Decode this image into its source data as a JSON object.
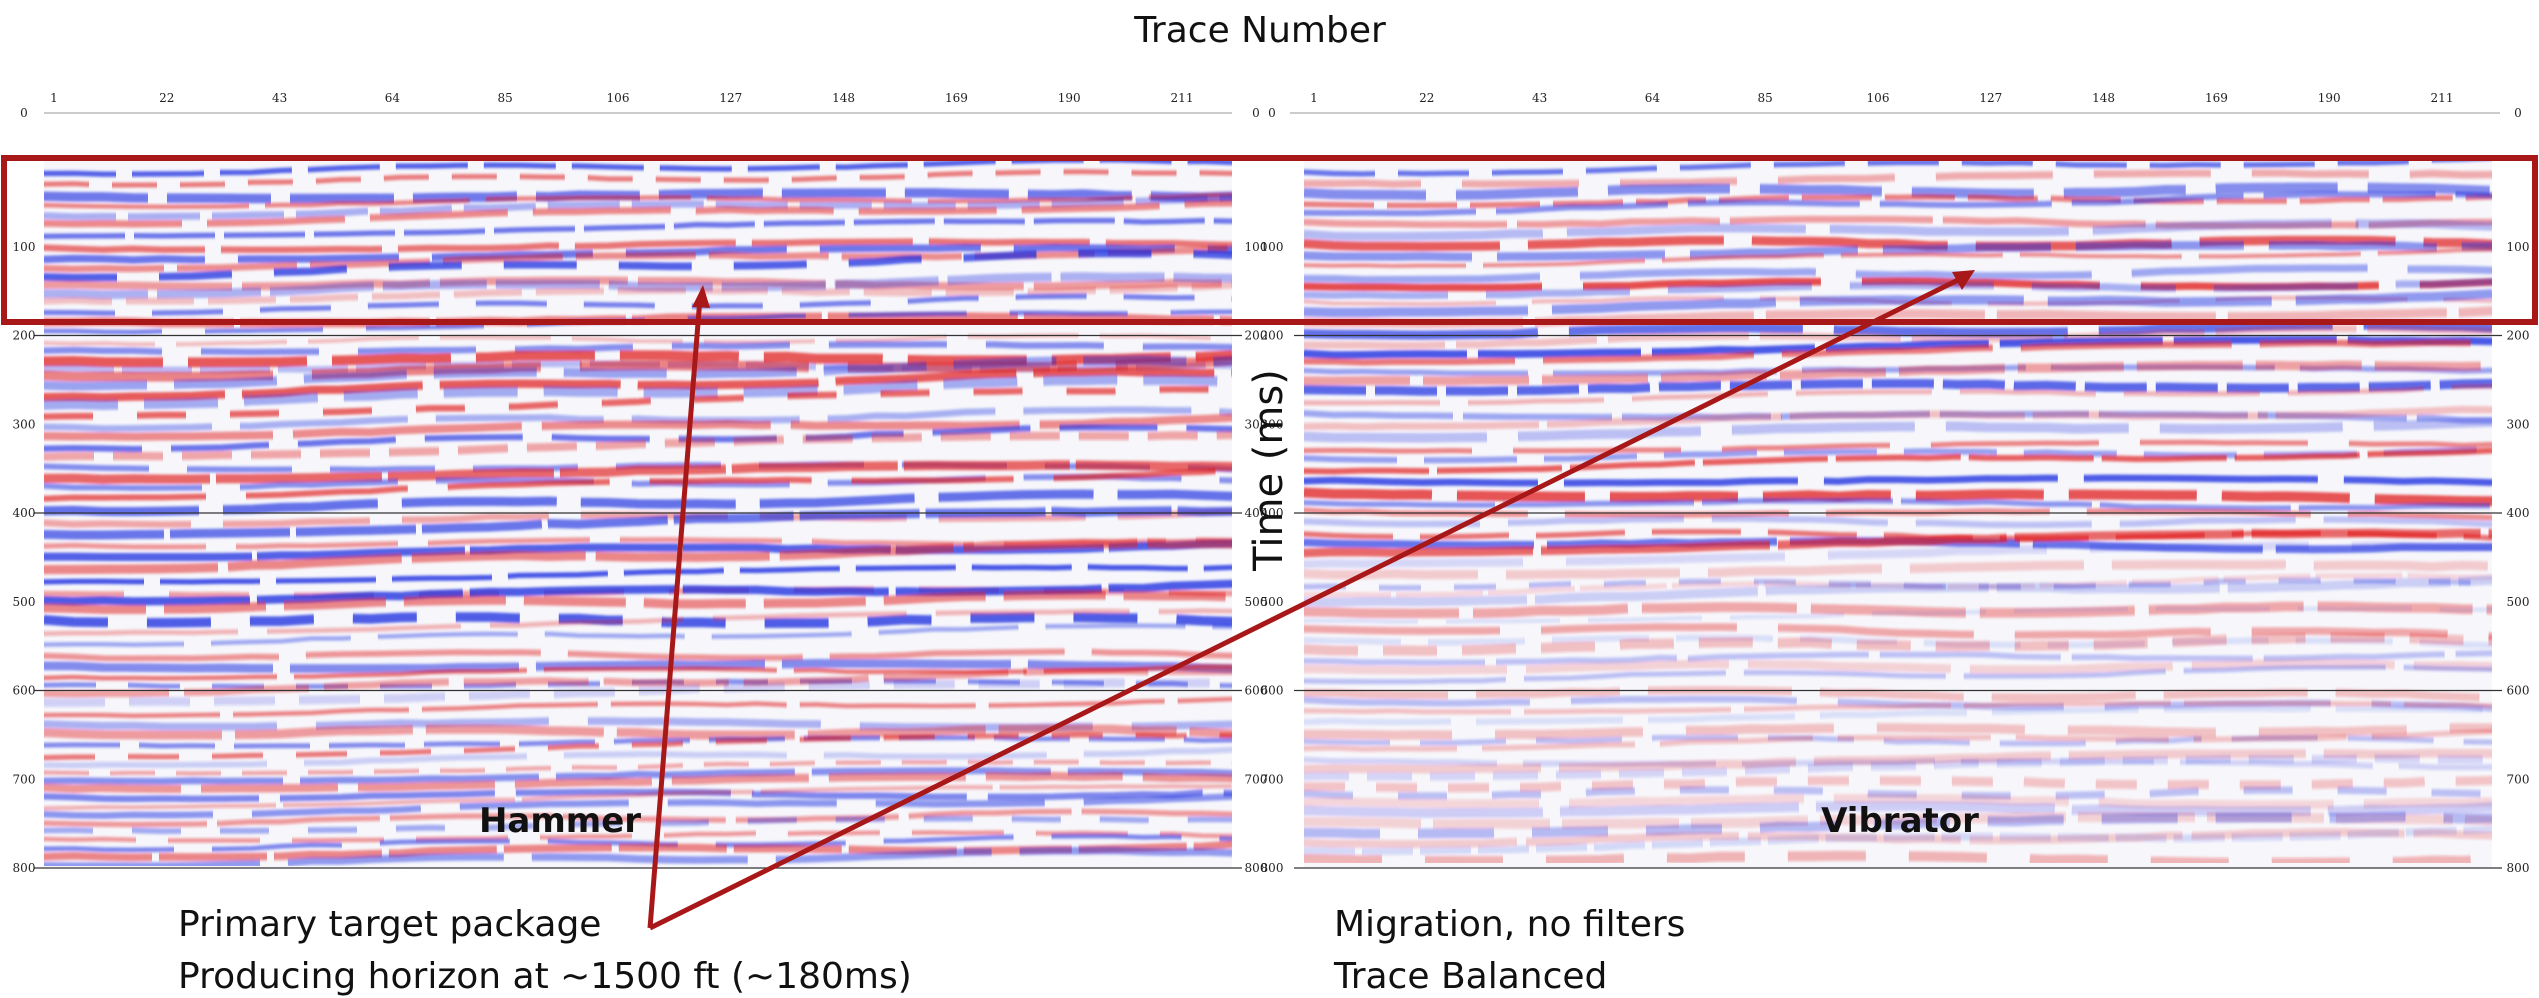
{
  "title": "Trace Number",
  "y_axis_label": "Time (ms)",
  "colors": {
    "positive": "#e01c1c",
    "negative": "#1c2ee0",
    "highlight": "#a81818",
    "arrow": "#a81818"
  },
  "panels": [
    {
      "label": "Hammer",
      "trace_ticks": [
        "1",
        "22",
        "43",
        "64",
        "85",
        "106",
        "127",
        "148",
        "169",
        "190",
        "211"
      ],
      "time_ticks_left": [
        "0",
        "100",
        "200",
        "300",
        "400",
        "500",
        "600",
        "700",
        "800"
      ],
      "time_ticks_right": [
        "0",
        "100",
        "200",
        "300",
        "400",
        "500",
        "600",
        "700",
        "800"
      ]
    },
    {
      "label": "Vibrator",
      "trace_ticks": [
        "1",
        "22",
        "43",
        "64",
        "85",
        "106",
        "127",
        "148",
        "169",
        "190",
        "211"
      ],
      "time_ticks_left": [
        "0",
        "100",
        "200",
        "300",
        "400",
        "500",
        "600",
        "700",
        "800"
      ],
      "time_ticks_right": [
        "0",
        "100",
        "200",
        "300",
        "400",
        "500",
        "600",
        "700",
        "800"
      ]
    }
  ],
  "highlight_box": {
    "top_ms": 0,
    "bottom_ms": 200
  },
  "annotation_left": {
    "line1": "Primary target package",
    "line2": "Producing horizon at ~1500 ft (~180ms)"
  },
  "annotation_right": {
    "line1": "Migration, no filters",
    "line2": "Trace Balanced"
  }
}
